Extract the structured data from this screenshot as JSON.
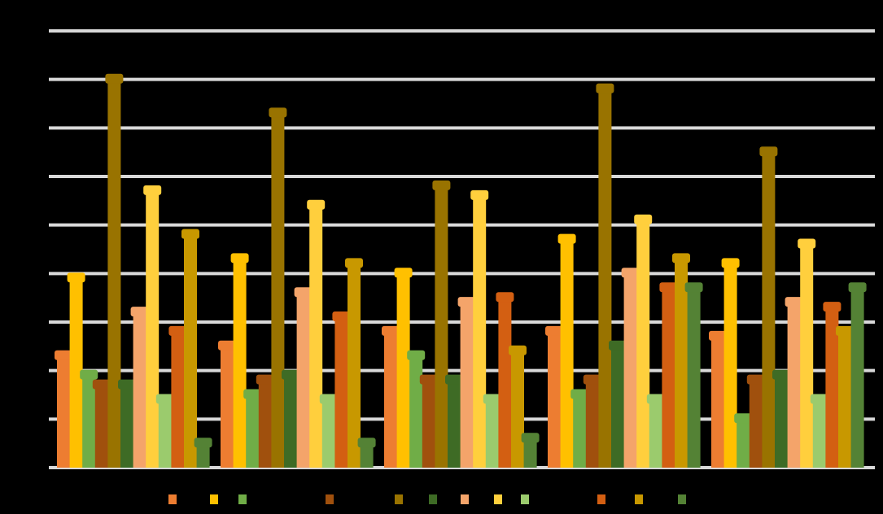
{
  "chart_data": {
    "type": "bar",
    "title": "",
    "xlabel": "",
    "ylabel": "",
    "ylim": [
      0,
      90
    ],
    "grid": true,
    "legend_position": "bottom",
    "categories": [
      "",
      "",
      "",
      "",
      ""
    ],
    "series": [
      {
        "color": "#ED7D31",
        "values": [
          23,
          25,
          28,
          28,
          27
        ]
      },
      {
        "color": "#FFC000",
        "values": [
          39,
          43,
          40,
          47,
          42
        ]
      },
      {
        "color": "#70AD47",
        "values": [
          19,
          15,
          23,
          15,
          10
        ]
      },
      {
        "color": "#A0500D",
        "values": [
          17,
          18,
          18,
          18,
          18
        ]
      },
      {
        "color": "#997300",
        "values": [
          80,
          73,
          58,
          78,
          65
        ]
      },
      {
        "color": "#3E6B25",
        "values": [
          17,
          19,
          18,
          25,
          19
        ]
      },
      {
        "color": "#F4A46A",
        "values": [
          32,
          36,
          34,
          40,
          34
        ]
      },
      {
        "color": "#FFCF3D",
        "values": [
          57,
          54,
          56,
          51,
          46
        ]
      },
      {
        "color": "#9BCB6D",
        "values": [
          14,
          14,
          14,
          14,
          14
        ]
      },
      {
        "color": "#D35F12",
        "values": [
          28,
          31,
          35,
          37,
          33
        ]
      },
      {
        "color": "#C89800",
        "values": [
          48,
          42,
          24,
          43,
          28
        ]
      },
      {
        "color": "#548235",
        "values": [
          5,
          5,
          6,
          37,
          37
        ]
      }
    ]
  }
}
